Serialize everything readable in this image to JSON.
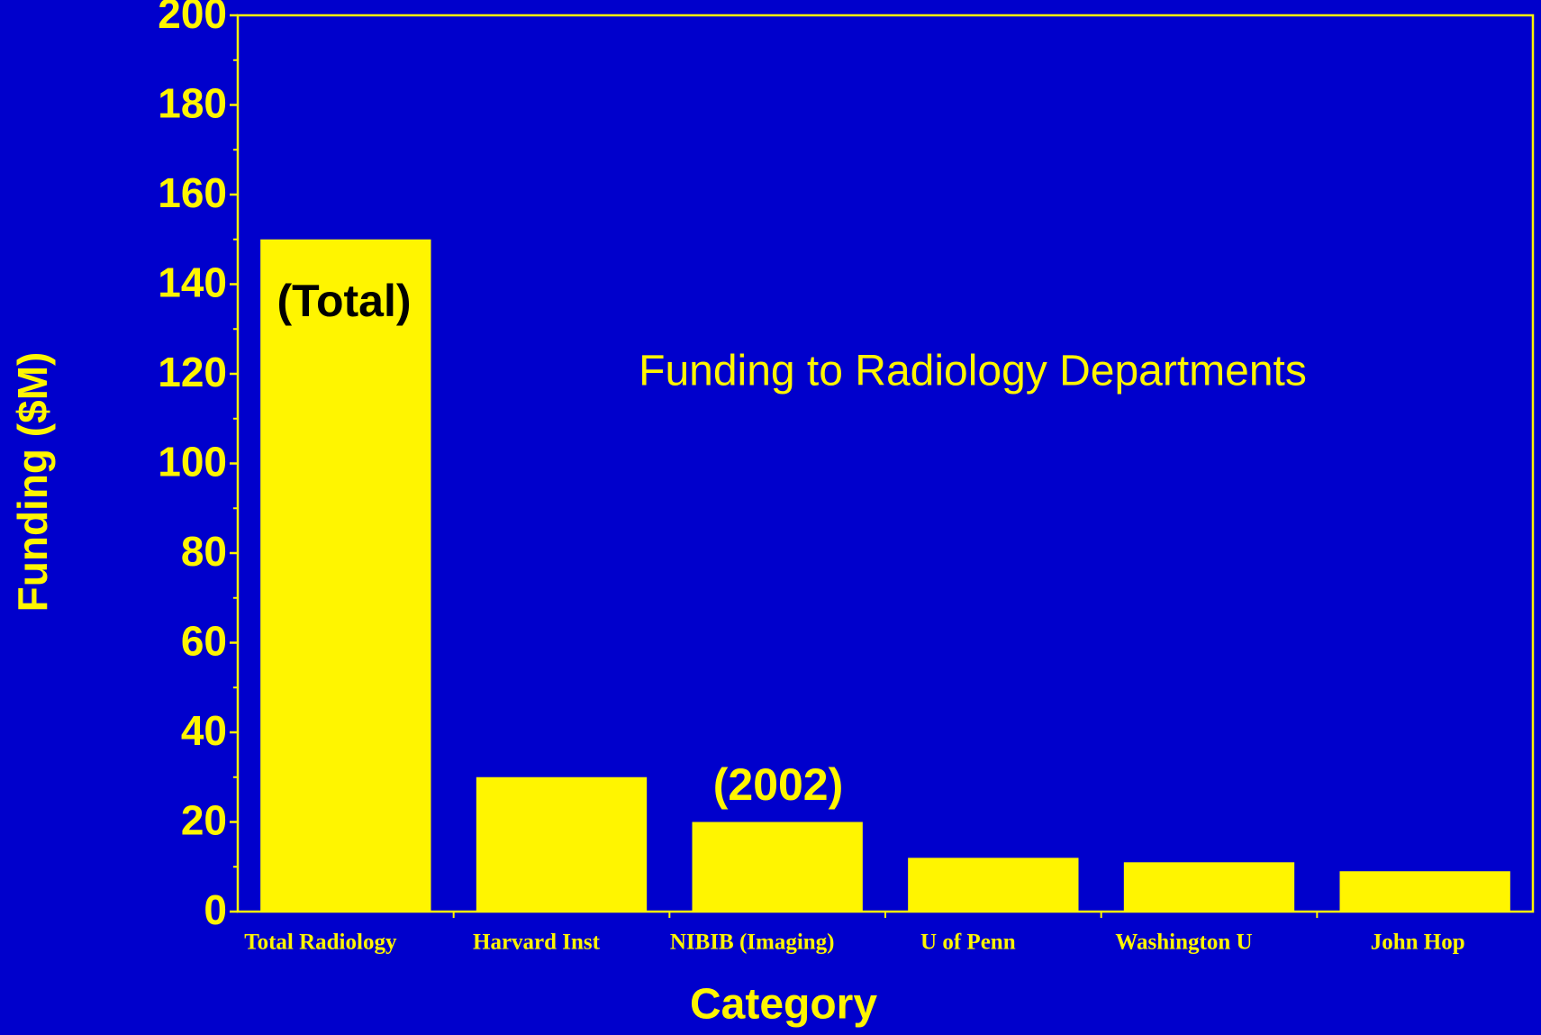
{
  "chart_data": {
    "type": "bar",
    "title": "Funding to Radiology Departments",
    "x_label": "Category",
    "y_label": "Funding ($M)",
    "categories": [
      "Total Radiology",
      "Harvard Inst",
      "NIBIB (Imaging)",
      "U of Penn",
      "Washington U",
      "John Hop"
    ],
    "values": [
      150,
      30,
      20,
      12,
      11,
      9
    ],
    "color": "#fff500",
    "annotations": [
      "(Total)",
      "(2002)"
    ],
    "ylim": [
      0,
      200
    ],
    "yticks": [
      0,
      20,
      40,
      60,
      80,
      100,
      120,
      140,
      160,
      180,
      200
    ],
    "grid": false
  }
}
